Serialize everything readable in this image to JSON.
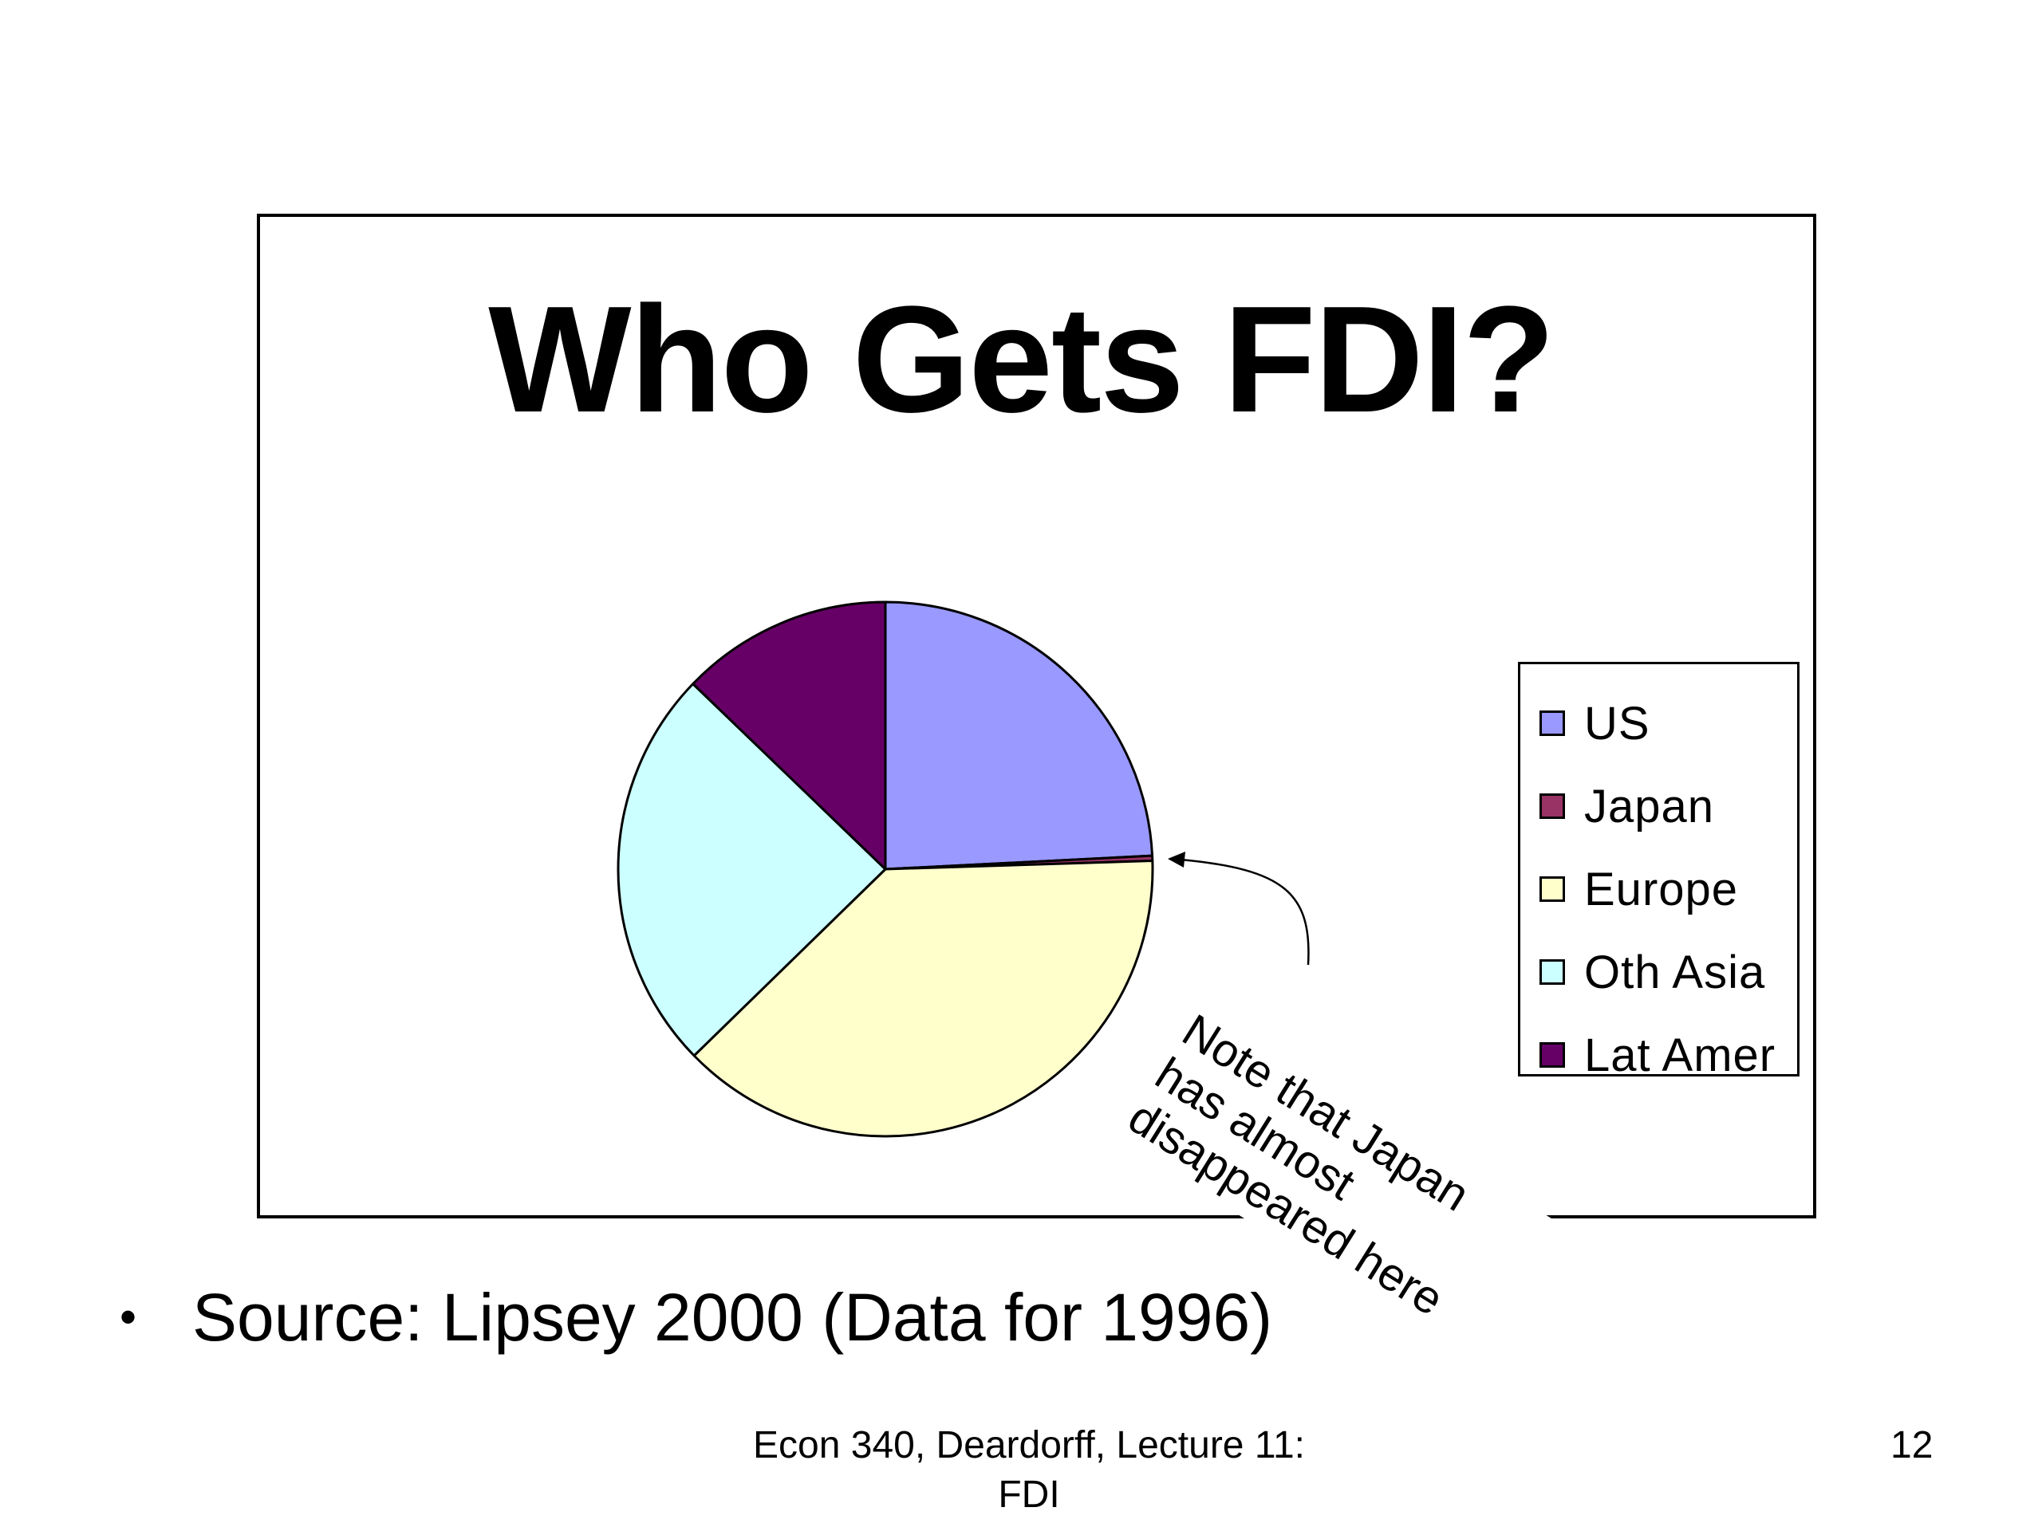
{
  "chart_data": {
    "type": "pie",
    "title": "Who Gets FDI?",
    "categories": [
      "US",
      "Japan",
      "Europe",
      "Oth Asia",
      "Lat Amer"
    ],
    "values": [
      24.2,
      0.3,
      38.2,
      24.5,
      12.8
    ],
    "unit": "",
    "colors": [
      "#9999FF",
      "#993366",
      "#FFFFCC",
      "#CCFFFF",
      "#660066"
    ],
    "legend_position": "right",
    "start_angle_deg": 0,
    "direction": "clockwise"
  },
  "annotation": {
    "lines": [
      "Note that Japan",
      "has almost",
      "disappeared here"
    ],
    "arrow_target": "Japan"
  },
  "source": {
    "bullet": "•",
    "text": "Source:  Lipsey 2000 (Data for 1996)"
  },
  "footer": {
    "line1": "Econ 340, Deardorff, Lecture 11:",
    "line2": "FDI",
    "page_number": "12"
  }
}
